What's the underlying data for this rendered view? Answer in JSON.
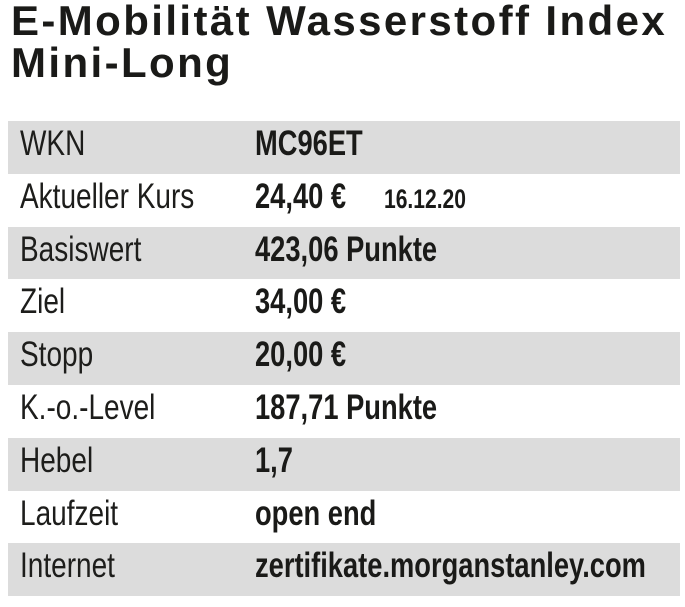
{
  "page": {
    "background_color": "#ffffff",
    "text_color": "#1d1d1b",
    "row_shade_color": "#dcdcdc"
  },
  "title": {
    "line1": "E-Mobilität Wasserstoff Index",
    "line2": "Mini-Long"
  },
  "table": {
    "rows": [
      {
        "label": "WKN",
        "value": "MC96ET"
      },
      {
        "label": "Aktueller Kurs",
        "value": "24,40 €",
        "note": "16.12.20"
      },
      {
        "label": "Basiswert",
        "value": "423,06 Punkte"
      },
      {
        "label": "Ziel",
        "value": "34,00 €"
      },
      {
        "label": "Stopp",
        "value": "20,00 €"
      },
      {
        "label": "K.-o.-Level",
        "value": "187,71 Punkte"
      },
      {
        "label": "Hebel",
        "value": "1,7"
      },
      {
        "label": "Laufzeit",
        "value": "open end"
      },
      {
        "label": "Internet",
        "value": "zertifikate.morganstanley.com"
      }
    ]
  }
}
